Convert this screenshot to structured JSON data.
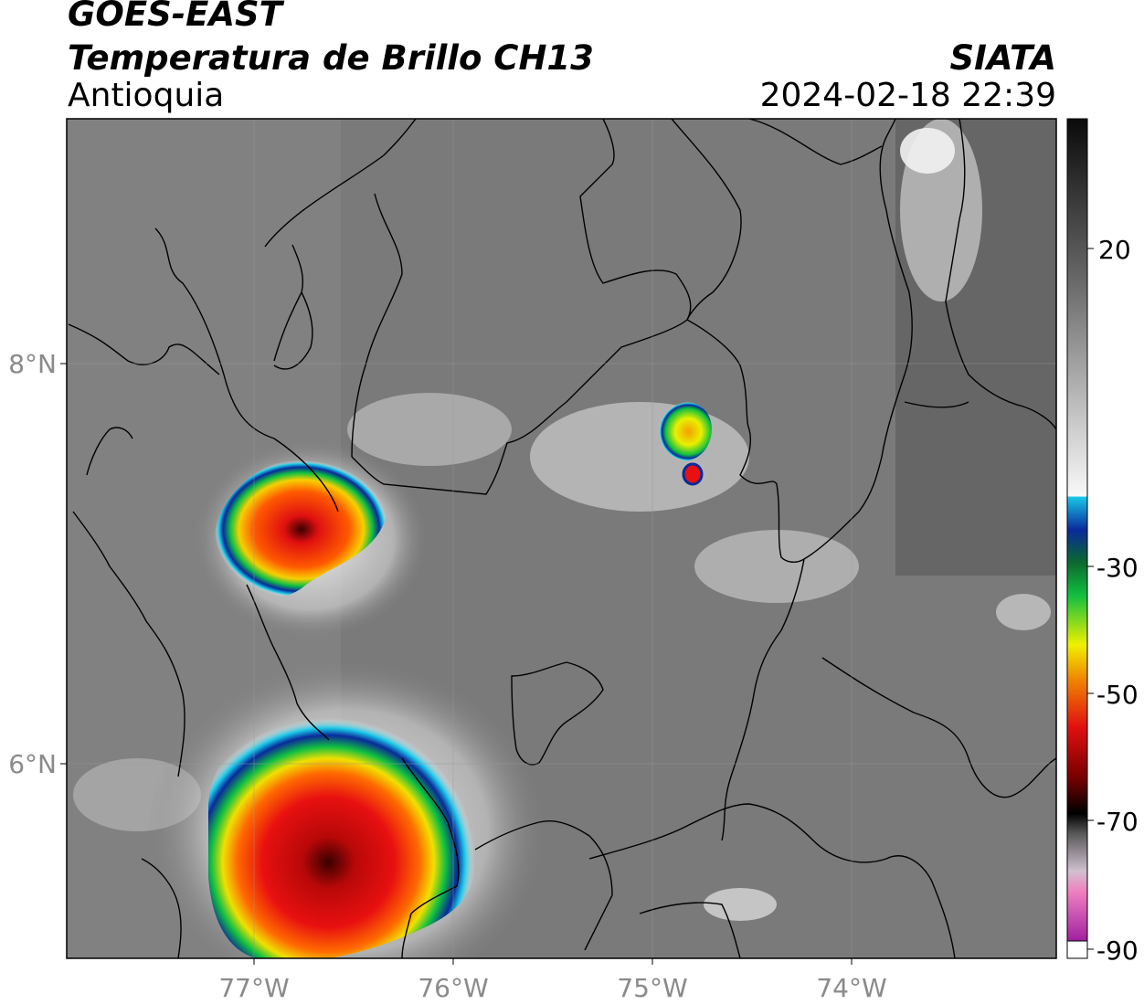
{
  "header": {
    "satellite": "GOES-EAST",
    "product": "Temperatura de Brillo CH13",
    "region": "Antioquia",
    "organization": "SIATA",
    "timestamp": "2024-02-18 22:39"
  },
  "map": {
    "lon_ticks": [
      "77°W",
      "76°W",
      "75°W",
      "74°W"
    ],
    "lat_ticks": [
      "8°N",
      "6°N"
    ],
    "extent": {
      "lon_min": -77.95,
      "lon_max": -72.98,
      "lat_min": 4.95,
      "lat_max": 9.18
    }
  },
  "colorbar": {
    "tick_labels": [
      "20",
      "-30",
      "-50",
      "-70",
      "-90"
    ],
    "tick_values": [
      20,
      -30,
      -50,
      -70,
      -90
    ],
    "range": [
      -90,
      40
    ],
    "colors": {
      "warm_gray_top": "#111111",
      "warm_gray_mid": "#7a7a7a",
      "warm_gray_low": "#f4f4f4",
      "cyan": "#18c8e8",
      "blue": "#0a2a9a",
      "green": "#10c040",
      "yellow": "#f0f000",
      "orange": "#f08a00",
      "red": "#e01010",
      "dark_red": "#5a0000",
      "black": "#000000",
      "pink": "#f080c0",
      "purple": "#a020a0"
    }
  },
  "storms": [
    {
      "name": "western-cell",
      "lon": -76.8,
      "lat": 7.15,
      "min_temp": -70
    },
    {
      "name": "southern-cell",
      "lon": -76.6,
      "lat": 5.5,
      "min_temp": -70
    },
    {
      "name": "northeast-cell",
      "lon": -74.8,
      "lat": 7.55,
      "min_temp": -60
    }
  ]
}
